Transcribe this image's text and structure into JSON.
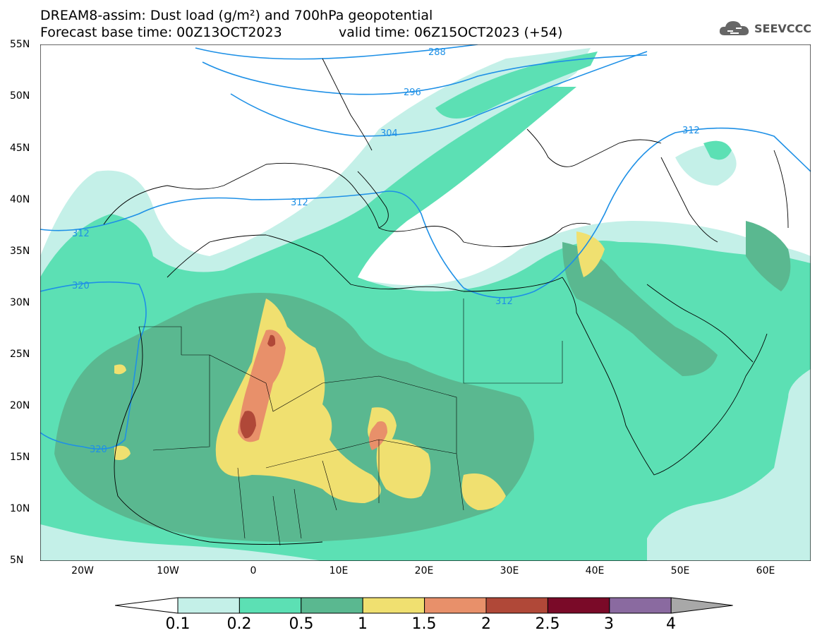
{
  "header": {
    "title_line1": "DREAM8-assim: Dust load (g/m²) and 700hPa geopotential",
    "base_time": "Forecast base time: 00Z13OCT2023",
    "valid_time": "valid time: 06Z15OCT2023 (+54)"
  },
  "logo": {
    "text": "SEEVCCC",
    "icon": "cloud-icon"
  },
  "axes": {
    "lat_labels": [
      "55N",
      "50N",
      "45N",
      "40N",
      "35N",
      "30N",
      "25N",
      "20N",
      "15N",
      "10N",
      "5N"
    ],
    "lon_labels": [
      "20W",
      "10W",
      "0",
      "10E",
      "20E",
      "30E",
      "40E",
      "50E",
      "60E"
    ]
  },
  "contours": {
    "geopotential_labels": [
      "288",
      "296",
      "304",
      "312",
      "312",
      "312",
      "312",
      "320",
      "320"
    ],
    "color": "#1e90e6"
  },
  "legend": {
    "ticks": [
      "0.1",
      "0.2",
      "0.5",
      "1",
      "1.5",
      "2",
      "2.5",
      "3",
      "4"
    ],
    "colors": [
      "#c4f0e8",
      "#5ce0b4",
      "#5ab890",
      "#f0e070",
      "#e8906a",
      "#b04838",
      "#7a0a28",
      "#8a6aa0",
      "#a8a8a8"
    ],
    "under_color": "#ffffff"
  }
}
